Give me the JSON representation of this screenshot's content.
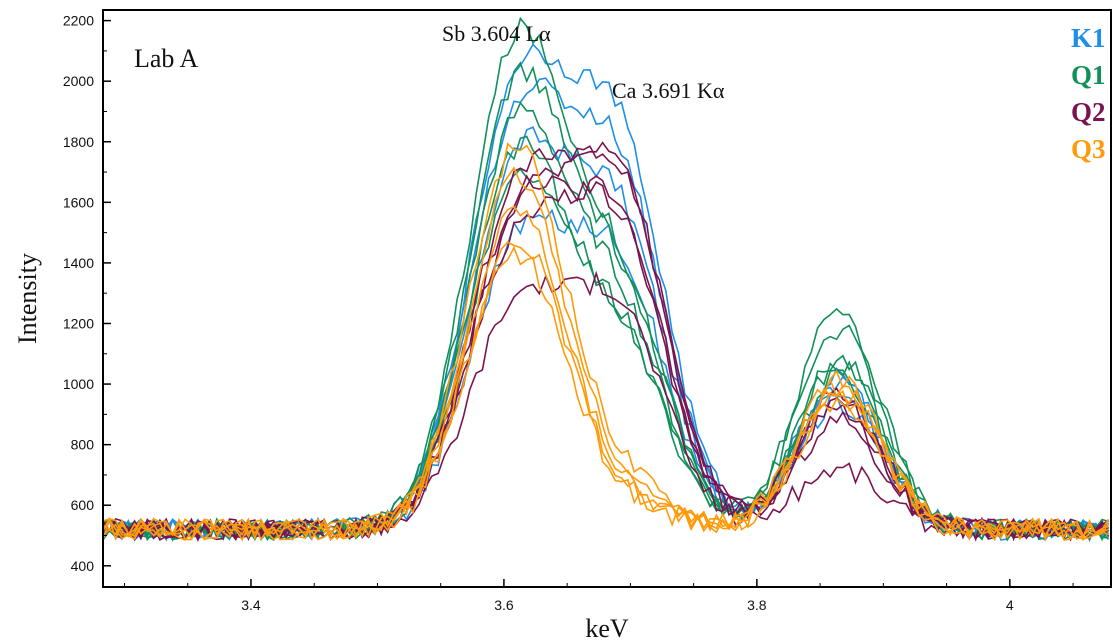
{
  "chart_data": {
    "type": "line",
    "title": "",
    "panel_label": "Lab A",
    "xlabel": "keV",
    "ylabel": "Intensity",
    "xlim": [
      3.283,
      4.08
    ],
    "ylim": [
      330,
      2235
    ],
    "xticks": [
      3.4,
      3.6,
      3.8,
      4
    ],
    "xtick_labels": [
      "3.4",
      "3.6",
      "3.8",
      "4"
    ],
    "yticks": [
      400,
      600,
      800,
      1000,
      1200,
      1400,
      1600,
      1800,
      2000,
      2200
    ],
    "ytick_labels": [
      "400",
      "600",
      "800",
      "1000",
      "1200",
      "1400",
      "1600",
      "1800",
      "2000",
      "2200"
    ],
    "grid": false,
    "legend_position": "top-right",
    "annotations": [
      {
        "text": "Sb 3.604 Lα",
        "x": 3.604
      },
      {
        "text": "Ca 3.691 Kα",
        "x": 3.691
      }
    ],
    "legend": [
      {
        "label": "K1",
        "color": "#1e8ee8"
      },
      {
        "label": "Q1",
        "color": "#11905a"
      },
      {
        "label": "Q2",
        "color": "#7a1450"
      },
      {
        "label": "Q3",
        "color": "#ff9a0a"
      }
    ],
    "series": [
      {
        "group": "K1",
        "color": "#1e8ee8",
        "a1": 1150,
        "a2": 1000,
        "a3": 500
      },
      {
        "group": "K1",
        "color": "#1e8ee8",
        "a1": 1400,
        "a2": 1250,
        "a3": 480
      },
      {
        "group": "K1",
        "color": "#1e8ee8",
        "a1": 900,
        "a2": 850,
        "a3": 420
      },
      {
        "group": "K1",
        "color": "#1e8ee8",
        "a1": 1300,
        "a2": 1150,
        "a3": 460
      },
      {
        "group": "Q1",
        "color": "#11905a",
        "a1": 1560,
        "a2": 780,
        "a3": 720
      },
      {
        "group": "Q1",
        "color": "#11905a",
        "a1": 1420,
        "a2": 760,
        "a3": 660
      },
      {
        "group": "Q1",
        "color": "#11905a",
        "a1": 1300,
        "a2": 700,
        "a3": 560
      },
      {
        "group": "Q1",
        "color": "#11905a",
        "a1": 1200,
        "a2": 600,
        "a3": 500
      },
      {
        "group": "Q1",
        "color": "#11905a",
        "a1": 1100,
        "a2": 620,
        "a3": 540
      },
      {
        "group": "Q2",
        "color": "#7a1450",
        "a1": 950,
        "a2": 1150,
        "a3": 450
      },
      {
        "group": "Q2",
        "color": "#7a1450",
        "a1": 1050,
        "a2": 1100,
        "a3": 420
      },
      {
        "group": "Q2",
        "color": "#7a1450",
        "a1": 700,
        "a2": 700,
        "a3": 200
      },
      {
        "group": "Q2",
        "color": "#7a1450",
        "a1": 1000,
        "a2": 950,
        "a3": 400
      },
      {
        "group": "Q2",
        "color": "#7a1450",
        "a1": 900,
        "a2": 1000,
        "a3": 360
      },
      {
        "group": "Q3",
        "color": "#ff9a0a",
        "a1": 1250,
        "a2": 150,
        "a3": 500
      },
      {
        "group": "Q3",
        "color": "#ff9a0a",
        "a1": 1150,
        "a2": 120,
        "a3": 460
      },
      {
        "group": "Q3",
        "color": "#ff9a0a",
        "a1": 1050,
        "a2": 100,
        "a3": 420
      },
      {
        "group": "Q3",
        "color": "#ff9a0a",
        "a1": 950,
        "a2": 90,
        "a3": 470
      },
      {
        "group": "Q3",
        "color": "#ff9a0a",
        "a1": 900,
        "a2": 80,
        "a3": 440
      }
    ]
  }
}
